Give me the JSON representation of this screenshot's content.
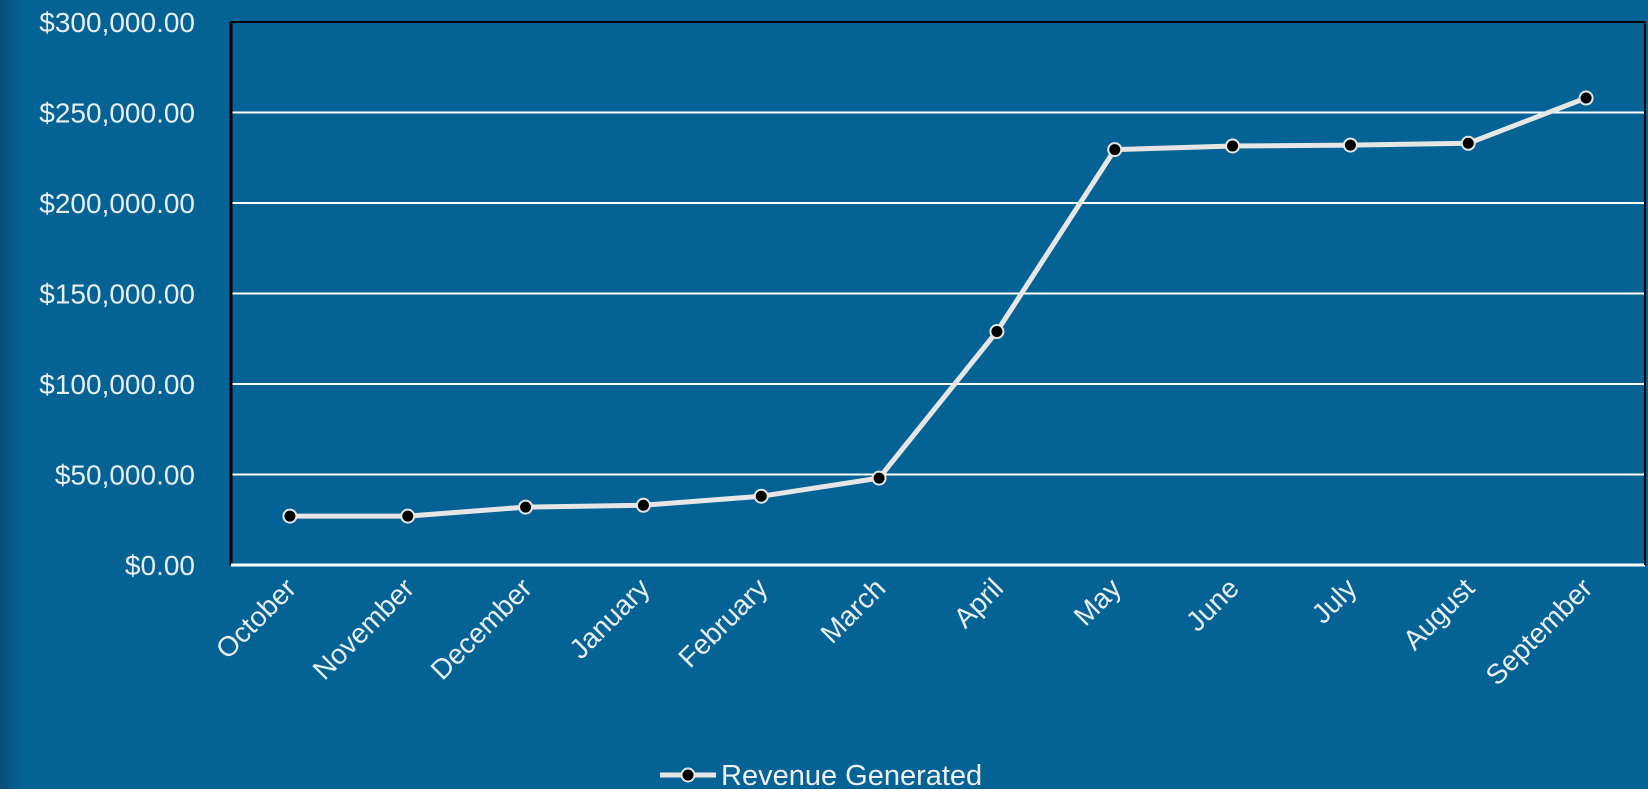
{
  "chart_data": {
    "type": "line",
    "title": "",
    "xlabel": "",
    "ylabel": "",
    "categories": [
      "October",
      "November",
      "December",
      "January",
      "February",
      "March",
      "April",
      "May",
      "June",
      "July",
      "August",
      "September"
    ],
    "series": [
      {
        "name": "Revenue Generated",
        "values": [
          27000,
          27000,
          32000,
          33000,
          38000,
          48000,
          129000,
          229500,
          231500,
          232000,
          233000,
          258000
        ]
      }
    ],
    "ylim": [
      0,
      300000
    ],
    "yticks": [
      0,
      50000,
      100000,
      150000,
      200000,
      250000,
      300000
    ],
    "ytick_labels": [
      "$0.00",
      "$50,000.00",
      "$100,000.00",
      "$150,000.00",
      "$200,000.00",
      "$250,000.00",
      "$300,000.00"
    ],
    "grid": true,
    "legend": "bottom",
    "colors": {
      "background": "#046294",
      "line": "#e6e6e6",
      "marker": "#000000",
      "grid": "#ffffff",
      "axis": "#000000",
      "text": "#e8eef2"
    }
  }
}
